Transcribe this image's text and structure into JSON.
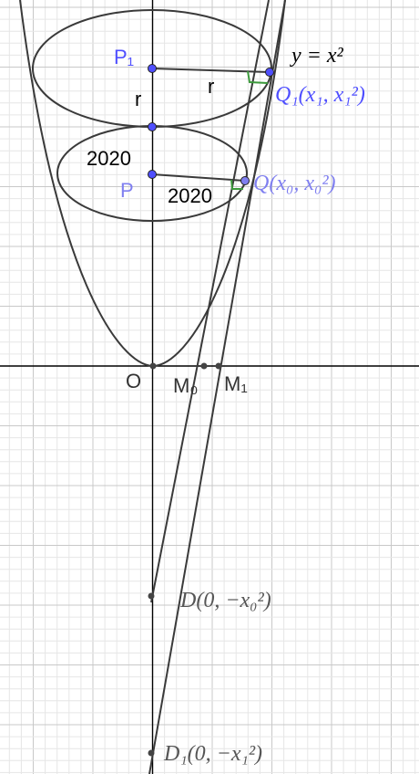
{
  "curve_label": "y = x²",
  "labels": {
    "P1": "P₁",
    "P": "P",
    "O": "O",
    "M0": "M₀",
    "M1": "M₁",
    "r_vertical": "r",
    "r_horizontal": "r",
    "n2020_vertical": "2020",
    "n2020_horizontal": "2020",
    "Q1": "Q₁(x₁, x₁²)",
    "Q": "Q(x₀, x₀²)",
    "D": "D(0, −x₀²)",
    "D1": "D₁(0, −x₁²)"
  },
  "colors": {
    "point_blue": "#4f4fff",
    "label_blue": "#5c5cf0",
    "label_light_blue": "#7f7ff0",
    "right_angle_green": "#3c9a3c",
    "curve_gray": "#3a3a3a",
    "grid_minor": "#e6e6e6",
    "grid_major": "#c8c8c8"
  }
}
